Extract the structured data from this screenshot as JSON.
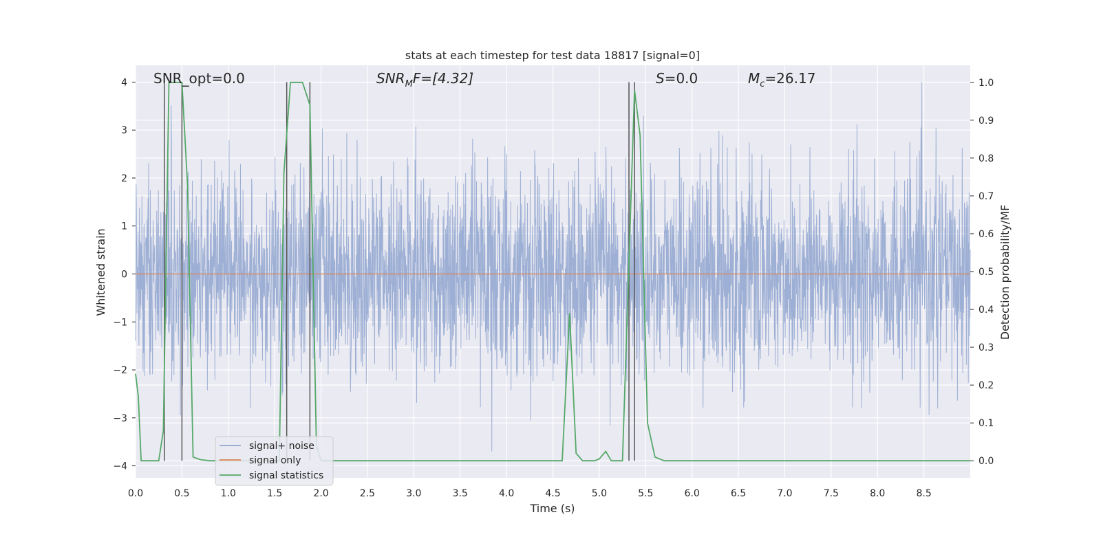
{
  "chart_data": {
    "type": "line",
    "title": "stats at each timestep for test data 18817 [signal=0]",
    "xlabel": "Time (s)",
    "ylabel": "Whitened strain",
    "ylabel_right": "Detection probability/MF",
    "xlim": [
      0,
      9.0
    ],
    "ylim": [
      -4.25,
      4.35
    ],
    "ylim_right": [
      -0.045,
      1.045
    ],
    "x_ticks": [
      "0.0",
      "0.5",
      "1.0",
      "1.5",
      "2.0",
      "2.5",
      "3.0",
      "3.5",
      "4.0",
      "4.5",
      "5.0",
      "5.5",
      "6.0",
      "6.5",
      "7.0",
      "7.5",
      "8.0",
      "8.5"
    ],
    "y_ticks": [
      "4",
      "3",
      "2",
      "1",
      "0",
      "−1",
      "−2",
      "−3",
      "−4"
    ],
    "y_right_ticks": [
      "1.0",
      "0.9",
      "0.8",
      "0.7",
      "0.6",
      "0.5",
      "0.4",
      "0.3",
      "0.2",
      "0.1",
      "0.0"
    ],
    "grid": true,
    "legend_position": "lower-left",
    "annotations": {
      "snr_opt": "SNR_opt=0.0",
      "snr_mf_main": "SNR",
      "snr_mf_sub": "M",
      "snr_mf_rest": "F=[4.32]",
      "s_main": "S",
      "s_rest": "=0.0",
      "mc_main": "M",
      "mc_sub": "c",
      "mc_rest": "=26.17"
    },
    "series": [
      {
        "name": "signal+ noise",
        "color": "#8fa4cf",
        "description_range": [
          -3.7,
          4.0
        ],
        "seed": 18817
      },
      {
        "name": "signal only",
        "color": "#dd8452",
        "x": [
          0,
          9.0
        ],
        "y": [
          0,
          0
        ]
      },
      {
        "name": "signal statistics",
        "color": "#55a868",
        "axis": "right",
        "x": [
          0.0,
          0.03,
          0.06,
          0.25,
          0.3,
          0.36,
          0.42,
          0.5,
          0.56,
          0.62,
          0.7,
          0.8,
          1.0,
          1.55,
          1.6,
          1.67,
          1.8,
          1.88,
          1.95,
          2.0,
          2.2,
          2.6,
          3.0,
          4.0,
          4.6,
          4.68,
          4.75,
          4.82,
          4.95,
          5.0,
          5.07,
          5.13,
          5.25,
          5.38,
          5.44,
          5.52,
          5.6,
          5.7,
          6.0,
          7.0,
          8.0,
          9.0
        ],
        "y": [
          0.23,
          0.17,
          0.0,
          0.0,
          0.08,
          1.0,
          1.0,
          1.0,
          0.73,
          0.01,
          0.003,
          0.0,
          0.0,
          0.0,
          0.76,
          1.0,
          1.0,
          0.94,
          0.04,
          0.0,
          0.0,
          0.0,
          0.0,
          0.0,
          0.0,
          0.39,
          0.02,
          0.0,
          0.0,
          0.005,
          0.025,
          0.0,
          0.0,
          0.98,
          0.86,
          0.1,
          0.01,
          0.0,
          0.0,
          0.0,
          0.0,
          0.0
        ]
      }
    ],
    "vertical_markers": [
      0.31,
      0.5,
      1.63,
      1.88,
      5.32,
      5.38
    ]
  }
}
